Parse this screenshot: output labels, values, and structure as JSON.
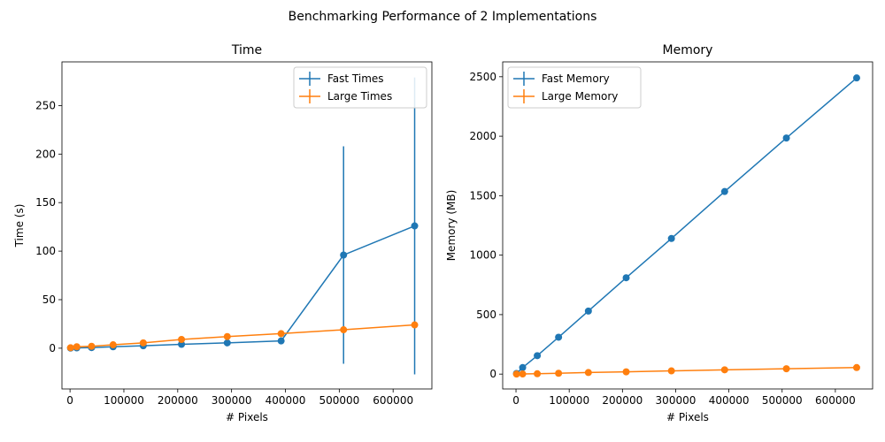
{
  "figure": {
    "suptitle": "Benchmarking Performance of 2 Implementations"
  },
  "chart_data": [
    {
      "type": "line",
      "title": "Time",
      "xlabel": "# Pixels",
      "ylabel": "Time (s)",
      "xlim": [
        -15000,
        672000
      ],
      "ylim": [
        -42,
        295
      ],
      "xticks": [
        0,
        100000,
        200000,
        300000,
        400000,
        500000,
        600000
      ],
      "yticks": [
        0,
        50,
        100,
        150,
        200,
        250
      ],
      "legend_position": "top-right",
      "grid": false,
      "x": [
        1000,
        12500,
        40000,
        80000,
        136000,
        207000,
        292000,
        392000,
        508000,
        640000
      ],
      "series": [
        {
          "name": "Fast Times",
          "color": "#1f77b4",
          "values": [
            0.1,
            0.3,
            0.6,
            1.5,
            2.5,
            4,
            5.5,
            7.5,
            96,
            126
          ],
          "errors": [
            0,
            0,
            0,
            0,
            0,
            0,
            0,
            0,
            112,
            153
          ]
        },
        {
          "name": "Large Times",
          "color": "#ff7f0e",
          "values": [
            0.5,
            1.5,
            2,
            3.5,
            5.5,
            9,
            12,
            15,
            19,
            24
          ],
          "errors": [
            0,
            0,
            0,
            0,
            0,
            0,
            0,
            0,
            0,
            0
          ]
        }
      ]
    },
    {
      "type": "line",
      "title": "Memory",
      "xlabel": "# Pixels",
      "ylabel": "Memory (MB)",
      "xlim": [
        -25000,
        670000
      ],
      "ylim": [
        -125,
        2625
      ],
      "xticks": [
        0,
        100000,
        200000,
        300000,
        400000,
        500000,
        600000
      ],
      "yticks": [
        0,
        500,
        1000,
        1500,
        2000,
        2500
      ],
      "legend_position": "top-left",
      "grid": false,
      "x": [
        1000,
        12500,
        40000,
        80000,
        136000,
        207000,
        292000,
        392000,
        508000,
        640000
      ],
      "series": [
        {
          "name": "Fast Memory",
          "color": "#1f77b4",
          "values": [
            5,
            55,
            155,
            310,
            530,
            810,
            1140,
            1535,
            1985,
            2490
          ],
          "errors": [
            0,
            0,
            0,
            0,
            0,
            0,
            0,
            0,
            0,
            0
          ]
        },
        {
          "name": "Large Memory",
          "color": "#ff7f0e",
          "values": [
            0,
            1,
            3,
            7,
            13,
            19,
            27,
            36,
            45,
            55
          ],
          "errors": [
            0,
            0,
            0,
            0,
            0,
            0,
            0,
            0,
            0,
            0
          ]
        }
      ]
    }
  ]
}
